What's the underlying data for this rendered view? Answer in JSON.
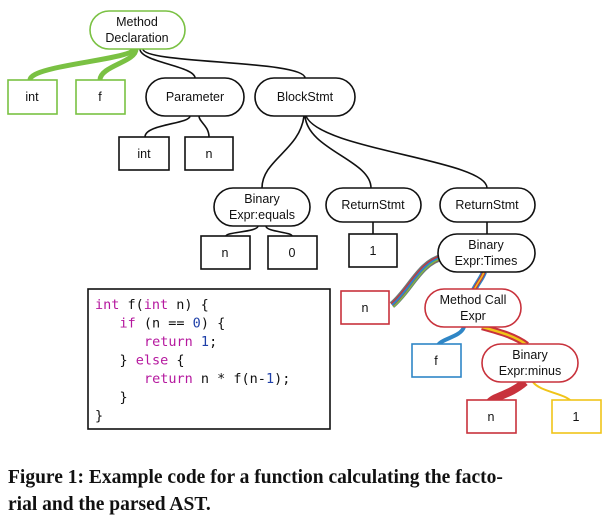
{
  "figure": {
    "nodes": {
      "method_declaration": [
        "Method",
        "Declaration"
      ],
      "int_type": "int",
      "f_name": "f",
      "parameter": "Parameter",
      "block_stmt": "BlockStmt",
      "param_int": "int",
      "param_n": "n",
      "binary_equals": [
        "Binary",
        "Expr:equals"
      ],
      "return_stmt_1": "ReturnStmt",
      "return_stmt_2": "ReturnStmt",
      "equals_n": "n",
      "equals_0": "0",
      "return_1": "1",
      "binary_times": [
        "Binary",
        "Expr:Times"
      ],
      "times_n": "n",
      "method_call": [
        "Method Call",
        "Expr"
      ],
      "call_f": "f",
      "binary_minus": [
        "Binary",
        "Expr:minus"
      ],
      "minus_n": "n",
      "minus_1": "1"
    },
    "code": [
      [
        {
          "t": "int f(",
          "c": "kw",
          "p": "int"
        },
        {
          "t": "int f(",
          "c": "plain"
        }
      ],
      []
    ],
    "code_lines": [
      {
        "indent": 0,
        "parts": [
          [
            "kw",
            "int"
          ],
          [
            "plain",
            " f("
          ],
          [
            "kw",
            "int"
          ],
          [
            "plain",
            " n) {"
          ]
        ]
      },
      {
        "indent": 1,
        "parts": [
          [
            "kw",
            "if"
          ],
          [
            "plain",
            " (n == "
          ],
          [
            "num",
            "0"
          ],
          [
            "plain",
            ") {"
          ]
        ]
      },
      {
        "indent": 2,
        "parts": [
          [
            "kw",
            "return"
          ],
          [
            "plain",
            " "
          ],
          [
            "num",
            "1"
          ],
          [
            "plain",
            ";"
          ]
        ]
      },
      {
        "indent": 1,
        "parts": [
          [
            "plain",
            "} "
          ],
          [
            "kw",
            "else"
          ],
          [
            "plain",
            " {"
          ]
        ]
      },
      {
        "indent": 2,
        "parts": [
          [
            "kw",
            "return"
          ],
          [
            "plain",
            " n * f(n-"
          ],
          [
            "num",
            "1"
          ],
          [
            "plain",
            ");"
          ]
        ]
      },
      {
        "indent": 1,
        "parts": [
          [
            "plain",
            "}"
          ]
        ]
      },
      {
        "indent": 0,
        "parts": [
          [
            "plain",
            "}"
          ]
        ]
      }
    ],
    "colors": {
      "green": "#7ac143",
      "red": "#c8323c",
      "blue": "#2f86c6",
      "yellow": "#f0c419",
      "gray": "#6c7a78",
      "black": "#111111"
    }
  },
  "caption": {
    "line1": "Figure 1: Example code for a function calculating the facto-",
    "line2": "rial and the parsed AST."
  }
}
